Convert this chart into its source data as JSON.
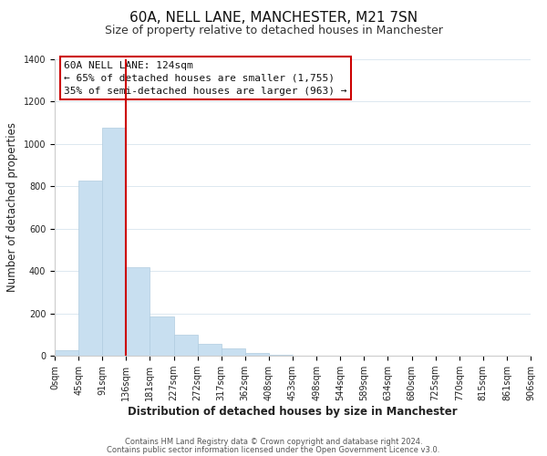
{
  "title": "60A, NELL LANE, MANCHESTER, M21 7SN",
  "subtitle": "Size of property relative to detached houses in Manchester",
  "xlabel": "Distribution of detached houses by size in Manchester",
  "ylabel": "Number of detached properties",
  "bar_color": "#c8dff0",
  "bar_edge_color": "#b0cce0",
  "bins": [
    "0sqm",
    "45sqm",
    "91sqm",
    "136sqm",
    "181sqm",
    "227sqm",
    "272sqm",
    "317sqm",
    "362sqm",
    "408sqm",
    "453sqm",
    "498sqm",
    "544sqm",
    "589sqm",
    "634sqm",
    "680sqm",
    "725sqm",
    "770sqm",
    "815sqm",
    "861sqm",
    "906sqm"
  ],
  "values": [
    25,
    825,
    1075,
    420,
    185,
    100,
    58,
    35,
    15,
    5,
    2,
    0,
    0,
    0,
    0,
    0,
    0,
    0,
    0,
    0
  ],
  "vline_x_bar_idx": 2,
  "vline_color": "#cc0000",
  "ylim": [
    0,
    1400
  ],
  "yticks": [
    0,
    200,
    400,
    600,
    800,
    1000,
    1200,
    1400
  ],
  "annotation_title": "60A NELL LANE: 124sqm",
  "annotation_line1": "← 65% of detached houses are smaller (1,755)",
  "annotation_line2": "35% of semi-detached houses are larger (963) →",
  "footer_line1": "Contains HM Land Registry data © Crown copyright and database right 2024.",
  "footer_line2": "Contains public sector information licensed under the Open Government Licence v3.0.",
  "title_fontsize": 11,
  "subtitle_fontsize": 9,
  "axis_label_fontsize": 8.5,
  "tick_fontsize": 7,
  "annotation_fontsize": 8,
  "footer_fontsize": 6,
  "background_color": "#ffffff",
  "grid_color": "#dce8f0"
}
